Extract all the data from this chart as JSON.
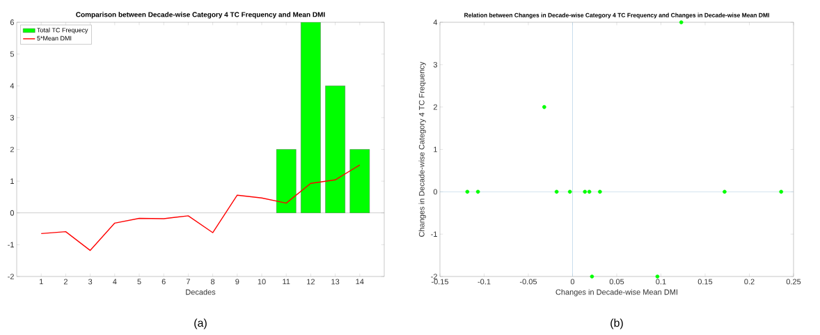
{
  "chart_data": [
    {
      "type": "bar",
      "title": "Comparison between Decade-wise Category 4 TC Frequency and Mean DMI",
      "xlabel": "Decades",
      "x": [
        1,
        2,
        3,
        4,
        5,
        6,
        7,
        8,
        9,
        10,
        11,
        12,
        13,
        14
      ],
      "series": [
        {
          "name": "Total TC Frequecy",
          "type": "bar",
          "color": "#00ff00",
          "values": [
            null,
            null,
            null,
            null,
            null,
            null,
            null,
            null,
            null,
            null,
            2,
            6,
            4,
            2
          ]
        },
        {
          "name": "5*Mean DMI",
          "type": "line",
          "color": "#ff0000",
          "values": [
            -0.65,
            -0.59,
            -1.18,
            -0.32,
            -0.17,
            -0.18,
            -0.09,
            -0.62,
            0.56,
            0.47,
            0.31,
            0.93,
            1.04,
            1.51
          ]
        }
      ],
      "xlim": [
        0,
        15
      ],
      "xticks": [
        1,
        2,
        3,
        4,
        5,
        6,
        7,
        8,
        9,
        10,
        11,
        12,
        13,
        14
      ],
      "ylim": [
        -2,
        6
      ],
      "yticks": [
        -2,
        -1,
        0,
        1,
        2,
        3,
        4,
        5,
        6
      ],
      "legend": "top left",
      "ref_lines": [
        {
          "axis": "y",
          "value": 0,
          "color": "#808080"
        }
      ],
      "annotations": [
        "(a)"
      ]
    },
    {
      "type": "scatter",
      "title": "Relation between Changes in Decade-wise Category 4 TC Frequency and Changes in Decade-wise Mean DMI",
      "xlabel": "Changes in Decade-wise Mean DMI",
      "ylabel": "Changes in Decade-wise Category 4 TC Frequency",
      "x": [
        -0.119,
        -0.107,
        -0.032,
        -0.018,
        -0.003,
        0.014,
        0.019,
        0.031,
        0.022,
        0.096,
        0.123,
        0.172,
        0.236
      ],
      "values": [
        0,
        0,
        2,
        0,
        0,
        0,
        0,
        0,
        -2,
        -2,
        4,
        0,
        0
      ],
      "color": "#00ff00",
      "marker": "circle",
      "xlim": [
        -0.15,
        0.25
      ],
      "xticks": [
        -0.15,
        -0.1,
        -0.05,
        0,
        0.05,
        0.1,
        0.15,
        0.2,
        0.25
      ],
      "ylim": [
        -2,
        4
      ],
      "yticks": [
        -2,
        -1,
        0,
        1,
        2,
        3,
        4
      ],
      "ref_lines": [
        {
          "axis": "x",
          "value": 0,
          "color": "#a6c8e0"
        },
        {
          "axis": "y",
          "value": 0,
          "color": "#a6c8e0"
        }
      ],
      "annotations": [
        "(b)"
      ]
    }
  ]
}
